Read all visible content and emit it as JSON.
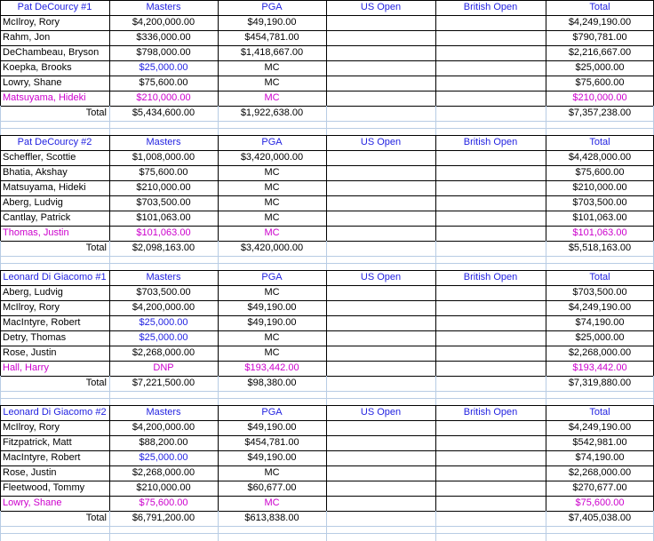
{
  "teams": [
    {
      "header": [
        "Pat DeCourcy #1",
        "Masters",
        "PGA",
        "US Open",
        "British Open",
        "Total"
      ],
      "players": [
        {
          "name": "McIlroy, Rory",
          "masters": "$4,200,000.00",
          "pga": "$49,190.00",
          "us": "",
          "british": "",
          "total": "$4,249,190.00",
          "style": ""
        },
        {
          "name": "Rahm, Jon",
          "masters": "$336,000.00",
          "pga": "$454,781.00",
          "us": "",
          "british": "",
          "total": "$790,781.00",
          "style": ""
        },
        {
          "name": "DeChambeau, Bryson",
          "masters": "$798,000.00",
          "pga": "$1,418,667.00",
          "us": "",
          "british": "",
          "total": "$2,216,667.00",
          "style": ""
        },
        {
          "name": "Koepka, Brooks",
          "masters": "$25,000.00",
          "pga": "MC",
          "us": "",
          "british": "",
          "total": "$25,000.00",
          "style": "blue-masters"
        },
        {
          "name": "Lowry, Shane",
          "masters": "$75,600.00",
          "pga": "MC",
          "us": "",
          "british": "",
          "total": "$75,600.00",
          "style": ""
        },
        {
          "name": "Matsuyama, Hideki",
          "masters": "$210,000.00",
          "pga": "MC",
          "us": "",
          "british": "",
          "total": "$210,000.00",
          "style": "alternate"
        }
      ],
      "total": {
        "label": "Total",
        "masters": "$5,434,600.00",
        "pga": "$1,922,638.00",
        "us": "",
        "british": "",
        "total": "$7,357,238.00"
      }
    },
    {
      "header": [
        "Pat DeCourcy #2",
        "Masters",
        "PGA",
        "US Open",
        "British Open",
        "Total"
      ],
      "players": [
        {
          "name": "Scheffler, Scottie",
          "masters": "$1,008,000.00",
          "pga": "$3,420,000.00",
          "us": "",
          "british": "",
          "total": "$4,428,000.00",
          "style": ""
        },
        {
          "name": "Bhatia, Akshay",
          "masters": "$75,600.00",
          "pga": "MC",
          "us": "",
          "british": "",
          "total": "$75,600.00",
          "style": ""
        },
        {
          "name": "Matsuyama, Hideki",
          "masters": "$210,000.00",
          "pga": "MC",
          "us": "",
          "british": "",
          "total": "$210,000.00",
          "style": ""
        },
        {
          "name": "Aberg, Ludvig",
          "masters": "$703,500.00",
          "pga": "MC",
          "us": "",
          "british": "",
          "total": "$703,500.00",
          "style": ""
        },
        {
          "name": "Cantlay, Patrick",
          "masters": "$101,063.00",
          "pga": "MC",
          "us": "",
          "british": "",
          "total": "$101,063.00",
          "style": ""
        },
        {
          "name": "Thomas, Justin",
          "masters": "$101,063.00",
          "pga": "MC",
          "us": "",
          "british": "",
          "total": "$101,063.00",
          "style": "alternate"
        }
      ],
      "total": {
        "label": "Total",
        "masters": "$2,098,163.00",
        "pga": "$3,420,000.00",
        "us": "",
        "british": "",
        "total": "$5,518,163.00"
      }
    },
    {
      "header": [
        "Leonard Di Giacomo #1",
        "Masters",
        "PGA",
        "US Open",
        "British Open",
        "Total"
      ],
      "players": [
        {
          "name": "Aberg, Ludvig",
          "masters": "$703,500.00",
          "pga": "MC",
          "us": "",
          "british": "",
          "total": "$703,500.00",
          "style": ""
        },
        {
          "name": "McIlroy, Rory",
          "masters": "$4,200,000.00",
          "pga": "$49,190.00",
          "us": "",
          "british": "",
          "total": "$4,249,190.00",
          "style": ""
        },
        {
          "name": "MacIntyre, Robert",
          "masters": "$25,000.00",
          "pga": "$49,190.00",
          "us": "",
          "british": "",
          "total": "$74,190.00",
          "style": "blue-masters"
        },
        {
          "name": "Detry, Thomas",
          "masters": "$25,000.00",
          "pga": "MC",
          "us": "",
          "british": "",
          "total": "$25,000.00",
          "style": "blue-masters"
        },
        {
          "name": "Rose,  Justin",
          "masters": "$2,268,000.00",
          "pga": "MC",
          "us": "",
          "british": "",
          "total": "$2,268,000.00",
          "style": ""
        },
        {
          "name": "Hall, Harry",
          "masters": "DNP",
          "pga": "$193,442.00",
          "us": "",
          "british": "",
          "total": "$193,442.00",
          "style": "alternate"
        }
      ],
      "total": {
        "label": "Total",
        "masters": "$7,221,500.00",
        "pga": "$98,380.00",
        "us": "",
        "british": "",
        "total": "$7,319,880.00"
      }
    },
    {
      "header": [
        "Leonard Di Giacomo #2",
        "Masters",
        "PGA",
        "US Open",
        "British Open",
        "Total"
      ],
      "players": [
        {
          "name": "McIlroy, Rory",
          "masters": "$4,200,000.00",
          "pga": "$49,190.00",
          "us": "",
          "british": "",
          "total": "$4,249,190.00",
          "style": ""
        },
        {
          "name": "Fitzpatrick, Matt",
          "masters": "$88,200.00",
          "pga": "$454,781.00",
          "us": "",
          "british": "",
          "total": "$542,981.00",
          "style": ""
        },
        {
          "name": "MacIntyre, Robert",
          "masters": "$25,000.00",
          "pga": "$49,190.00",
          "us": "",
          "british": "",
          "total": "$74,190.00",
          "style": "blue-masters"
        },
        {
          "name": "Rose,  Justin",
          "masters": "$2,268,000.00",
          "pga": "MC",
          "us": "",
          "british": "",
          "total": "$2,268,000.00",
          "style": ""
        },
        {
          "name": "Fleetwood, Tommy",
          "masters": "$210,000.00",
          "pga": "$60,677.00",
          "us": "",
          "british": "",
          "total": "$270,677.00",
          "style": ""
        },
        {
          "name": "Lowry, Shane",
          "masters": "$75,600.00",
          "pga": "MC",
          "us": "",
          "british": "",
          "total": "$75,600.00",
          "style": "alternate"
        }
      ],
      "total": {
        "label": "Total",
        "masters": "$6,791,200.00",
        "pga": "$613,838.00",
        "us": "",
        "british": "",
        "total": "$7,405,038.00"
      }
    }
  ],
  "colors": {
    "header_text": "#1f1fe0",
    "alternate_text": "#cc00cc",
    "grid": "#000000",
    "light_grid": "#b8cce4"
  }
}
